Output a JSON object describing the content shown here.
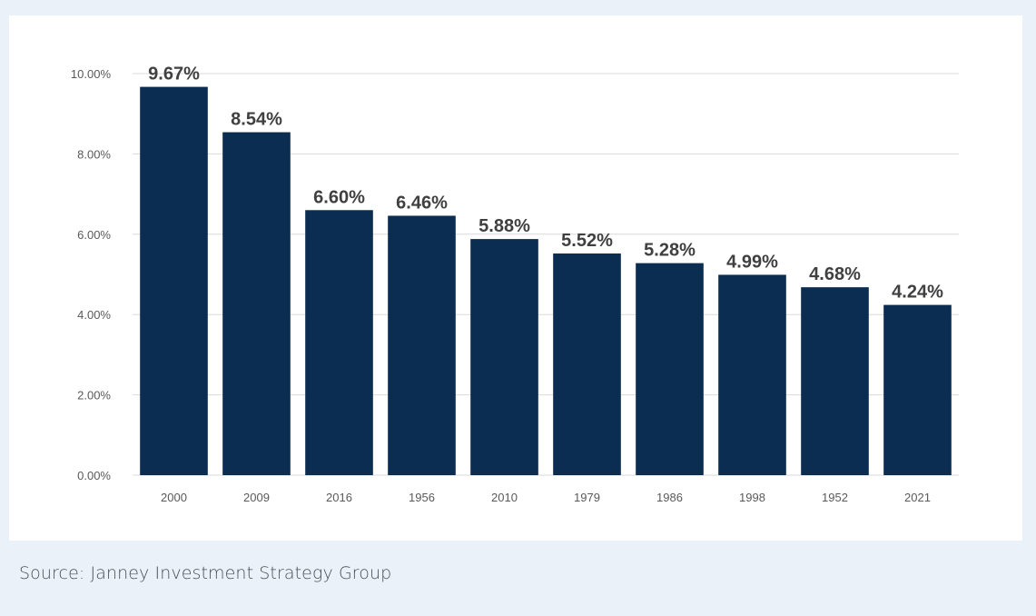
{
  "chart_data": {
    "type": "bar",
    "categories": [
      "2000",
      "2009",
      "2016",
      "1956",
      "2010",
      "1979",
      "1986",
      "1998",
      "1952",
      "2021"
    ],
    "values": [
      9.67,
      8.54,
      6.6,
      6.46,
      5.88,
      5.52,
      5.28,
      4.99,
      4.68,
      4.24
    ],
    "data_labels": [
      "9.67%",
      "8.54%",
      "6.60%",
      "6.46%",
      "5.88%",
      "5.52%",
      "5.28%",
      "4.99%",
      "4.68%",
      "4.24%"
    ],
    "yticks": [
      0,
      2,
      4,
      6,
      8,
      10
    ],
    "ytick_labels": [
      "0.00%",
      "2.00%",
      "4.00%",
      "6.00%",
      "8.00%",
      "10.00%"
    ],
    "ylim": [
      0,
      10
    ],
    "grid": true,
    "bar_color": "#0b2d52",
    "title": "",
    "xlabel": "",
    "ylabel": ""
  },
  "caption": "Source: Janney Investment Strategy Group"
}
